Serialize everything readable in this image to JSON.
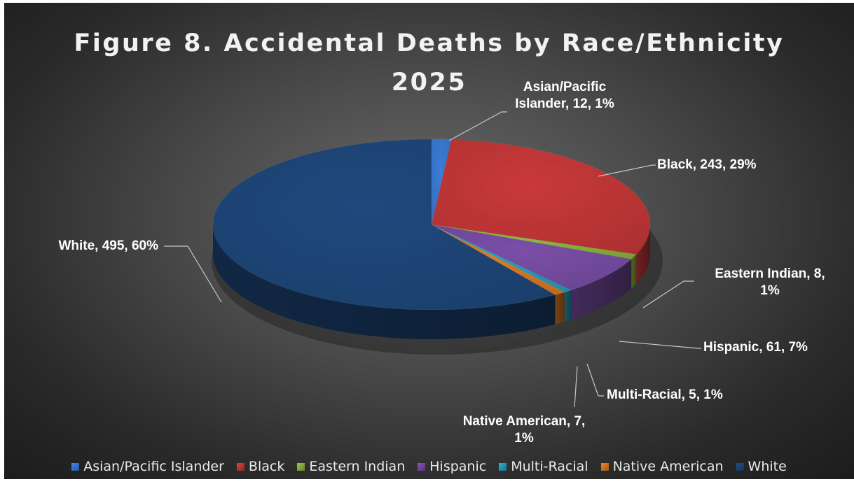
{
  "chart_data": {
    "type": "pie",
    "title": "Figure 8. Accidental Deaths by Race/Ethnicity 2025",
    "title_lines": [
      "Figure 8. Accidental Deaths by Race/Ethnicity",
      "2025"
    ],
    "legend_position": "bottom",
    "slices": [
      {
        "name": "Asian/Pacific Islander",
        "value": 12,
        "percent_label": "1%",
        "label_lines": [
          "Asian/Pacific",
          "Islander, 12, 1%"
        ],
        "color": "#3b7dd8"
      },
      {
        "name": "Black",
        "value": 243,
        "percent_label": "29%",
        "label_lines": [
          "Black, 243, 29%"
        ],
        "color": "#c9393a"
      },
      {
        "name": "Eastern Indian",
        "value": 8,
        "percent_label": "1%",
        "label_lines": [
          "Eastern Indian, 8,",
          "1%"
        ],
        "color": "#8db83e"
      },
      {
        "name": "Hispanic",
        "value": 61,
        "percent_label": "7%",
        "label_lines": [
          "Hispanic, 61, 7%"
        ],
        "color": "#7a4fa8"
      },
      {
        "name": "Multi-Racial",
        "value": 5,
        "percent_label": "1%",
        "label_lines": [
          "Multi-Racial, 5, 1%"
        ],
        "color": "#27a3bf"
      },
      {
        "name": "Native American",
        "value": 7,
        "percent_label": "1%",
        "label_lines": [
          "Native American, 7,",
          "1%"
        ],
        "color": "#e07b22"
      },
      {
        "name": "White",
        "value": 495,
        "percent_label": "60%",
        "label_lines": [
          "White, 495, 60%"
        ],
        "color": "#1f497d"
      }
    ]
  }
}
